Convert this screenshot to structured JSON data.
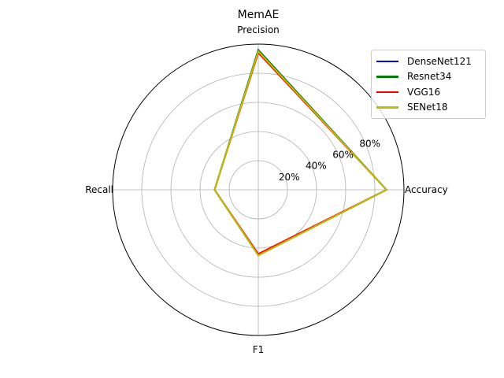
{
  "chart_data": {
    "type": "radar",
    "title": "MemAE",
    "axes": [
      "Accuracy",
      "Precision",
      "Recall",
      "F1"
    ],
    "rlim": [
      0,
      100
    ],
    "r_ticks": [
      {
        "value": 20,
        "label": "20%"
      },
      {
        "value": 40,
        "label": "40%"
      },
      {
        "value": 60,
        "label": "60%"
      },
      {
        "value": 80,
        "label": "80%"
      }
    ],
    "grid": true,
    "legend_position": "top-right",
    "series": [
      {
        "name": "DenseNet121",
        "color": "#0000ff",
        "values": [
          88,
          96,
          30,
          45
        ]
      },
      {
        "name": "Resnet34",
        "color": "#008000",
        "values": [
          88,
          96,
          30,
          45
        ]
      },
      {
        "name": "VGG16",
        "color": "#ff0000",
        "values": [
          88,
          94,
          30,
          44
        ]
      },
      {
        "name": "SENet18",
        "color": "#bfbf00",
        "values": [
          88,
          95,
          30,
          45
        ]
      }
    ]
  }
}
